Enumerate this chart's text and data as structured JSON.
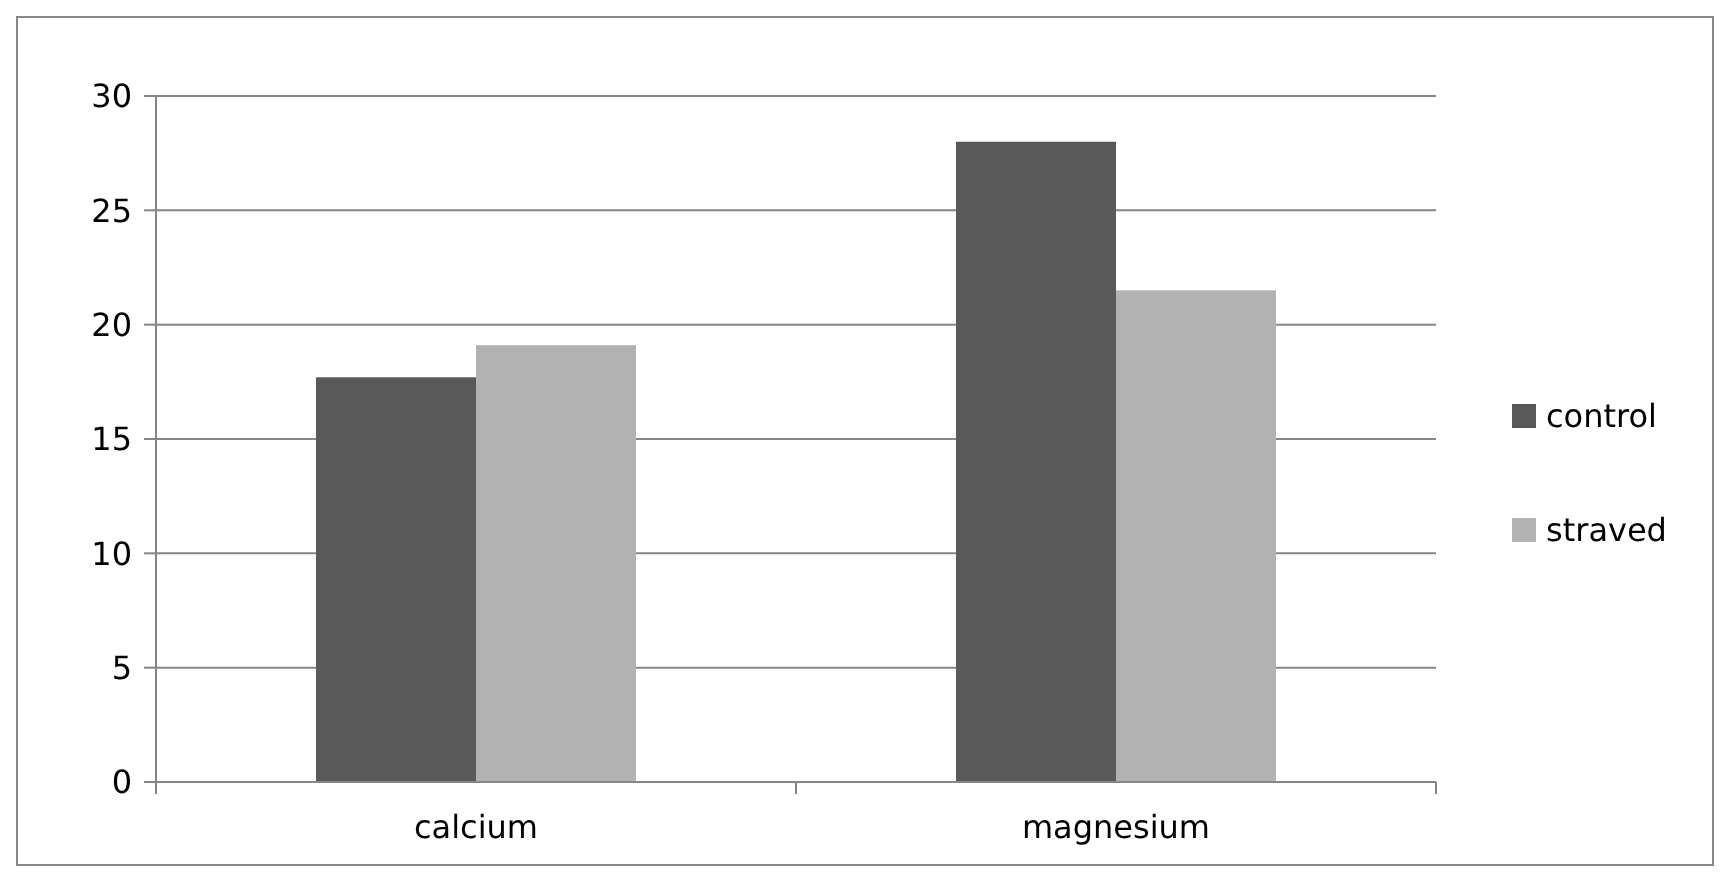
{
  "chart_data": {
    "type": "bar",
    "categories": [
      "calcium",
      "magnesium"
    ],
    "series": [
      {
        "name": "control",
        "color": "#595959",
        "values": [
          17.7,
          28
        ]
      },
      {
        "name": "straved",
        "color": "#b2b2b2",
        "values": [
          19.1,
          21.5
        ]
      }
    ],
    "ylim": [
      0,
      30
    ],
    "yticks": [
      0,
      5,
      10,
      15,
      20,
      25,
      30
    ],
    "grid": "y",
    "legend": "right"
  }
}
